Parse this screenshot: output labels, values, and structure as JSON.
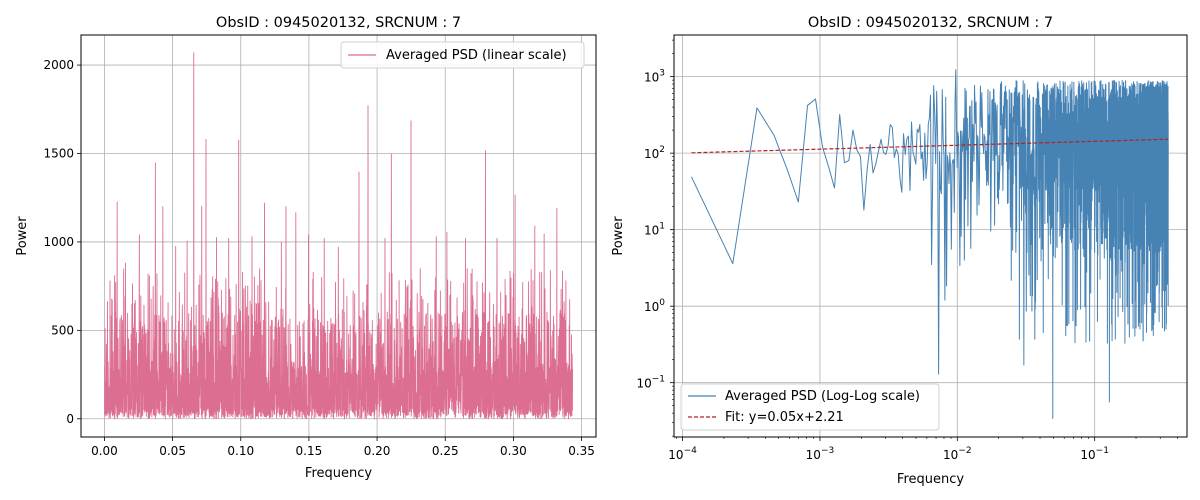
{
  "figure": {
    "background": "#ffffff"
  },
  "chart_data": [
    {
      "type": "line",
      "title": "ObsID : 0945020132, SRCNUM : 7",
      "xlabel": "Frequency",
      "ylabel": "Power",
      "xscale": "linear",
      "yscale": "linear",
      "xlim": [
        -0.0172,
        0.3606
      ],
      "ylim": [
        -103,
        2170
      ],
      "xticks": [
        0.0,
        0.05,
        0.1,
        0.15,
        0.2,
        0.25,
        0.3,
        0.35
      ],
      "xtick_labels": [
        "0.00",
        "0.05",
        "0.10",
        "0.15",
        "0.20",
        "0.25",
        "0.30",
        "0.35"
      ],
      "yticks": [
        0,
        500,
        1000,
        1500,
        2000
      ],
      "ytick_labels": [
        "0",
        "500",
        "1000",
        "1500",
        "2000"
      ],
      "grid": true,
      "legend_position": "top-right",
      "series": [
        {
          "name": "Averaged PSD (linear scale)",
          "color": "#dc6e91",
          "style": "solid",
          "x_range": [
            0.000116,
            0.3434
          ],
          "n_points": 2950,
          "noise_note": "dense noise, typical values 0-800",
          "peaks": [
            {
              "x": 0.0005,
              "y": 510
            },
            {
              "x": 0.0074,
              "y": 810
            },
            {
              "x": 0.0093,
              "y": 1225
            },
            {
              "x": 0.0155,
              "y": 880
            },
            {
              "x": 0.0256,
              "y": 1040
            },
            {
              "x": 0.0374,
              "y": 1445
            },
            {
              "x": 0.0428,
              "y": 1200
            },
            {
              "x": 0.0523,
              "y": 975
            },
            {
              "x": 0.0607,
              "y": 1005
            },
            {
              "x": 0.0655,
              "y": 2070
            },
            {
              "x": 0.0714,
              "y": 1200
            },
            {
              "x": 0.0745,
              "y": 1580
            },
            {
              "x": 0.0822,
              "y": 1025
            },
            {
              "x": 0.0912,
              "y": 1020
            },
            {
              "x": 0.0985,
              "y": 1575
            },
            {
              "x": 0.1082,
              "y": 1030
            },
            {
              "x": 0.1174,
              "y": 1220
            },
            {
              "x": 0.1298,
              "y": 1000
            },
            {
              "x": 0.1332,
              "y": 1200
            },
            {
              "x": 0.1404,
              "y": 1165
            },
            {
              "x": 0.1497,
              "y": 1040
            },
            {
              "x": 0.1612,
              "y": 1020
            },
            {
              "x": 0.1716,
              "y": 970
            },
            {
              "x": 0.1867,
              "y": 1395
            },
            {
              "x": 0.1934,
              "y": 1770
            },
            {
              "x": 0.2058,
              "y": 1020
            },
            {
              "x": 0.2105,
              "y": 1495
            },
            {
              "x": 0.2249,
              "y": 1685
            },
            {
              "x": 0.2434,
              "y": 1030
            },
            {
              "x": 0.2512,
              "y": 1055
            },
            {
              "x": 0.2648,
              "y": 1020
            },
            {
              "x": 0.2795,
              "y": 1515
            },
            {
              "x": 0.288,
              "y": 1020
            },
            {
              "x": 0.3013,
              "y": 1265
            },
            {
              "x": 0.3157,
              "y": 1090
            },
            {
              "x": 0.3226,
              "y": 1045
            },
            {
              "x": 0.3319,
              "y": 1190
            },
            {
              "x": 0.3385,
              "y": 780
            }
          ]
        }
      ]
    },
    {
      "type": "line",
      "title": "ObsID : 0945020132, SRCNUM : 7",
      "xlabel": "Frequency",
      "ylabel": "Power",
      "xscale": "log",
      "yscale": "log",
      "xlim": [
        8.66e-05,
        0.47
      ],
      "ylim": [
        0.0195,
        3500
      ],
      "xticks": [
        0.0001,
        0.001,
        0.01,
        0.1
      ],
      "xtick_labels": [
        {
          "base": "10",
          "exp": "−4"
        },
        {
          "base": "10",
          "exp": "−3"
        },
        {
          "base": "10",
          "exp": "−2"
        },
        {
          "base": "10",
          "exp": "−1"
        }
      ],
      "yticks": [
        0.1,
        1,
        10,
        100,
        1000
      ],
      "ytick_labels": [
        {
          "base": "10",
          "exp": "−1"
        },
        {
          "base": "10",
          "exp": "0"
        },
        {
          "base": "10",
          "exp": "1"
        },
        {
          "base": "10",
          "exp": "2"
        },
        {
          "base": "10",
          "exp": "3"
        }
      ],
      "grid": true,
      "legend_position": "bottom-left",
      "series": [
        {
          "name": "Averaged PSD (Log-Log scale)",
          "color": "#4682b4",
          "style": "solid",
          "x_range": [
            0.000116,
            0.3434
          ],
          "points_low_freq": [
            {
              "x": 0.000116,
              "y": 49
            },
            {
              "x": 0.000232,
              "y": 3.6
            },
            {
              "x": 0.000348,
              "y": 390
            },
            {
              "x": 0.000464,
              "y": 170
            },
            {
              "x": 0.00058,
              "y": 60
            },
            {
              "x": 0.000696,
              "y": 23
            },
            {
              "x": 0.000812,
              "y": 420
            },
            {
              "x": 0.000928,
              "y": 510
            },
            {
              "x": 0.001044,
              "y": 120
            },
            {
              "x": 0.00116,
              "y": 65
            },
            {
              "x": 0.001276,
              "y": 35
            },
            {
              "x": 0.001392,
              "y": 320
            },
            {
              "x": 0.001508,
              "y": 75
            },
            {
              "x": 0.001624,
              "y": 80
            },
            {
              "x": 0.00174,
              "y": 200
            },
            {
              "x": 0.001856,
              "y": 110
            },
            {
              "x": 0.001972,
              "y": 90
            },
            {
              "x": 0.002088,
              "y": 18
            },
            {
              "x": 0.002204,
              "y": 60
            },
            {
              "x": 0.00232,
              "y": 130
            },
            {
              "x": 0.002436,
              "y": 55
            }
          ],
          "dips": [
            {
              "x": 0.00655,
              "y": 3.5
            },
            {
              "x": 0.00735,
              "y": 0.13
            },
            {
              "x": 0.0081,
              "y": 1.2
            },
            {
              "x": 0.0104,
              "y": 3.4
            },
            {
              "x": 0.0305,
              "y": 0.17
            },
            {
              "x": 0.0495,
              "y": 0.034
            },
            {
              "x": 0.0748,
              "y": 0.9
            },
            {
              "x": 0.128,
              "y": 0.056
            },
            {
              "x": 0.225,
              "y": 0.35
            }
          ],
          "peak": {
            "x": 0.0098,
            "y": 1230
          }
        },
        {
          "name": "Fit: y=0.05x+2.21",
          "color": "#b22222",
          "style": "dashed",
          "x": [
            0.000116,
            0.3434
          ],
          "y": [
            101,
            152
          ]
        }
      ]
    }
  ]
}
